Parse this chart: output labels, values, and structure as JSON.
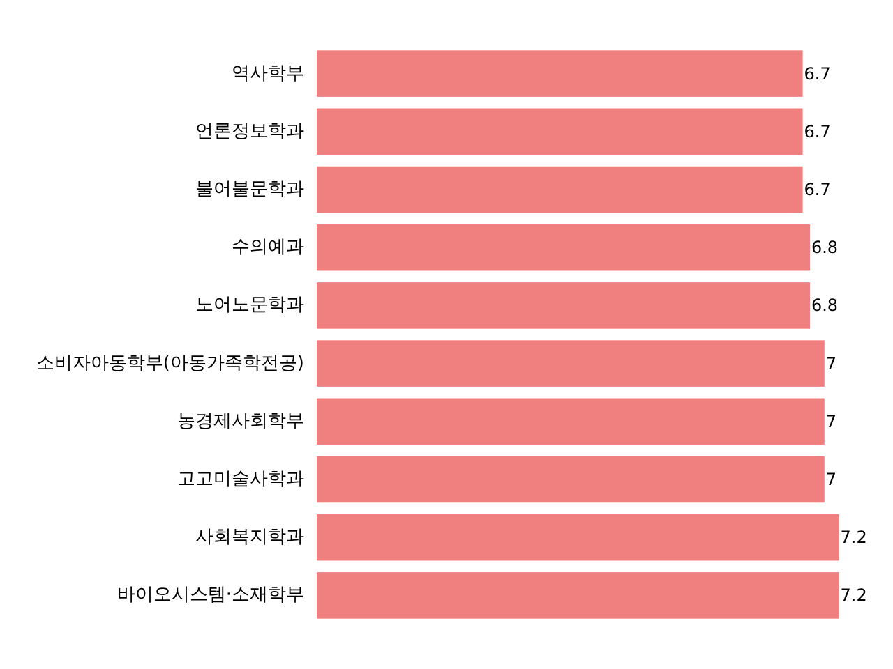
{
  "chart_data": {
    "type": "bar",
    "orientation": "horizontal",
    "categories": [
      "역사학부",
      "언론정보학과",
      "불어불문학과",
      "수의예과",
      "노어노문학과",
      "소비자아동학부(아동가족학전공)",
      "농경제사회학부",
      "고고미술사학과",
      "사회복지학과",
      "바이오시스템·소재학부"
    ],
    "values": [
      6.7,
      6.7,
      6.7,
      6.8,
      6.8,
      7,
      7,
      7,
      7.2,
      7.2
    ],
    "color": "#f08080",
    "data_labels": true
  }
}
